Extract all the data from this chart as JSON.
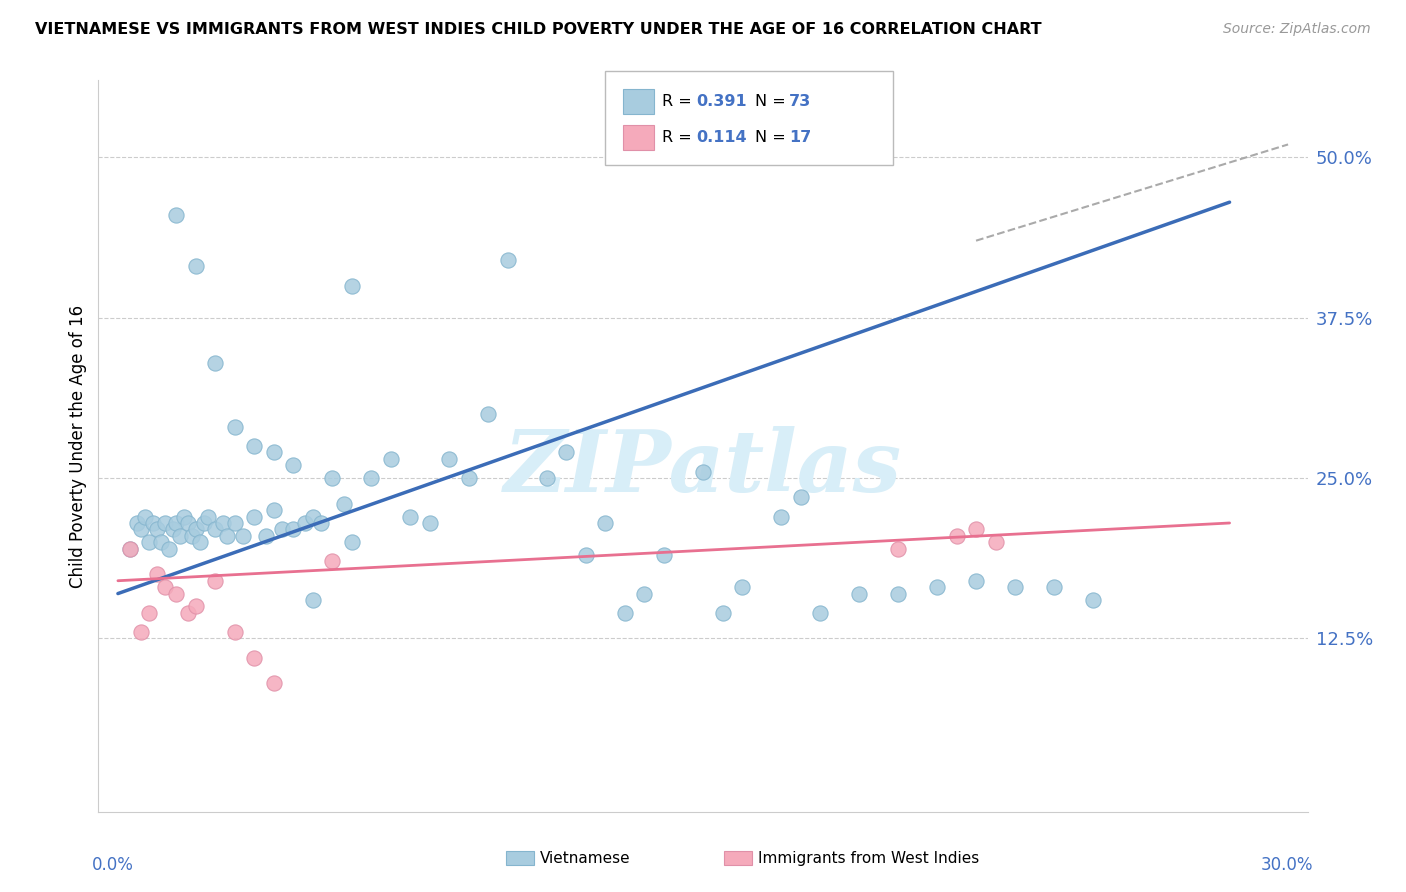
{
  "title": "VIETNAMESE VS IMMIGRANTS FROM WEST INDIES CHILD POVERTY UNDER THE AGE OF 16 CORRELATION CHART",
  "source": "Source: ZipAtlas.com",
  "ylabel": "Child Poverty Under the Age of 16",
  "ytick_labels": [
    "12.5%",
    "25.0%",
    "37.5%",
    "50.0%"
  ],
  "ytick_vals": [
    0.125,
    0.25,
    0.375,
    0.5
  ],
  "xlim": [
    0.0,
    0.3
  ],
  "ylim": [
    0.0,
    0.55
  ],
  "blue_dot_color": "#A8CCDF",
  "pink_dot_color": "#F5AABB",
  "blue_line_color": "#3B6CB7",
  "pink_line_color": "#E87090",
  "dash_color": "#AAAAAA",
  "watermark_color": "#D8EEF8",
  "viet_x": [
    0.003,
    0.005,
    0.006,
    0.007,
    0.008,
    0.009,
    0.01,
    0.011,
    0.012,
    0.013,
    0.014,
    0.015,
    0.016,
    0.017,
    0.018,
    0.019,
    0.02,
    0.021,
    0.022,
    0.023,
    0.025,
    0.027,
    0.028,
    0.03,
    0.032,
    0.035,
    0.038,
    0.04,
    0.042,
    0.045,
    0.048,
    0.05,
    0.052,
    0.055,
    0.058,
    0.06,
    0.065,
    0.07,
    0.075,
    0.08,
    0.085,
    0.09,
    0.095,
    0.1,
    0.11,
    0.115,
    0.12,
    0.125,
    0.13,
    0.135,
    0.14,
    0.15,
    0.155,
    0.16,
    0.17,
    0.175,
    0.18,
    0.19,
    0.2,
    0.21,
    0.22,
    0.23,
    0.24,
    0.25,
    0.015,
    0.02,
    0.025,
    0.03,
    0.035,
    0.04,
    0.045,
    0.05,
    0.06
  ],
  "viet_y": [
    0.195,
    0.215,
    0.21,
    0.22,
    0.2,
    0.215,
    0.21,
    0.2,
    0.215,
    0.195,
    0.21,
    0.215,
    0.205,
    0.22,
    0.215,
    0.205,
    0.21,
    0.2,
    0.215,
    0.22,
    0.21,
    0.215,
    0.205,
    0.215,
    0.205,
    0.22,
    0.205,
    0.225,
    0.21,
    0.21,
    0.215,
    0.22,
    0.215,
    0.25,
    0.23,
    0.2,
    0.25,
    0.265,
    0.22,
    0.215,
    0.265,
    0.25,
    0.3,
    0.42,
    0.25,
    0.27,
    0.19,
    0.215,
    0.145,
    0.16,
    0.19,
    0.255,
    0.145,
    0.165,
    0.22,
    0.235,
    0.145,
    0.16,
    0.16,
    0.165,
    0.17,
    0.165,
    0.165,
    0.155,
    0.455,
    0.415,
    0.34,
    0.29,
    0.275,
    0.27,
    0.26,
    0.155,
    0.4
  ],
  "wi_x": [
    0.003,
    0.006,
    0.008,
    0.01,
    0.012,
    0.015,
    0.018,
    0.02,
    0.025,
    0.03,
    0.035,
    0.04,
    0.055,
    0.2,
    0.215,
    0.22,
    0.225
  ],
  "wi_y": [
    0.195,
    0.13,
    0.145,
    0.175,
    0.165,
    0.16,
    0.145,
    0.15,
    0.17,
    0.13,
    0.11,
    0.09,
    0.185,
    0.195,
    0.205,
    0.21,
    0.2
  ],
  "blue_line_x": [
    0.0,
    0.285
  ],
  "blue_line_y": [
    0.16,
    0.465
  ],
  "pink_line_x": [
    0.0,
    0.285
  ],
  "pink_line_y": [
    0.17,
    0.215
  ],
  "dash_line_x": [
    0.22,
    0.3
  ],
  "dash_line_y": [
    0.435,
    0.51
  ]
}
